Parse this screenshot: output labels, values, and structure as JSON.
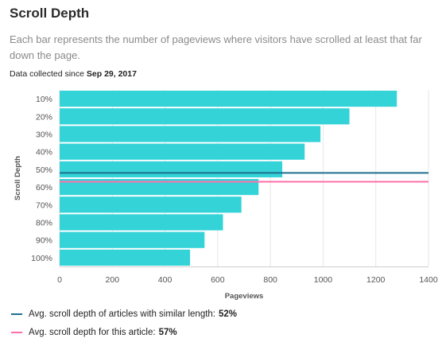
{
  "header": {
    "title": "Scroll Depth",
    "description": "Each bar represents the number of pageviews where visitors have scrolled at least that far down the page.",
    "collected_prefix": "Data collected since",
    "collected_date": "Sep 29, 2017"
  },
  "chart_data": {
    "type": "bar",
    "orientation": "horizontal",
    "categories": [
      "10%",
      "20%",
      "30%",
      "40%",
      "50%",
      "60%",
      "70%",
      "80%",
      "90%",
      "100%"
    ],
    "values": [
      1280,
      1100,
      990,
      930,
      845,
      755,
      690,
      620,
      550,
      495
    ],
    "xlabel": "Pageviews",
    "ylabel": "Scroll Depth",
    "xlim": [
      0,
      1400
    ],
    "xticks": [
      0,
      200,
      400,
      600,
      800,
      1000,
      1200,
      1400
    ],
    "grid": "vertical",
    "bar_color": "#33d3d8",
    "reference_lines": [
      {
        "name": "Avg. scroll depth of articles with similar length",
        "value": 52,
        "value_label": "52%",
        "color": "#1d6f8f"
      },
      {
        "name": "Avg. scroll depth for this article",
        "value": 57,
        "value_label": "57%",
        "color": "#ff6fa8"
      }
    ]
  },
  "legend": [
    {
      "label": "Avg. scroll depth of articles with similar length:",
      "value": "52%",
      "color": "#1d6f8f"
    },
    {
      "label": "Avg. scroll depth for this article:",
      "value": "57%",
      "color": "#ff6fa8"
    }
  ]
}
